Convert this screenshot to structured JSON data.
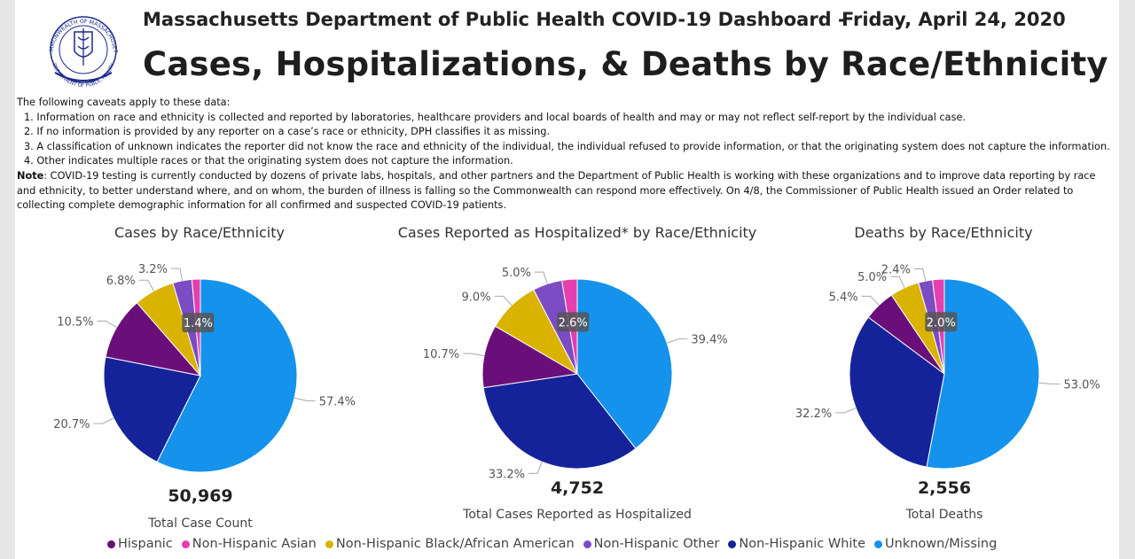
{
  "header": {
    "dept_title": "Massachusetts Department of Public Health COVID-19 Dashboard -",
    "date": "Friday, April 24, 2020",
    "main_title": "Cases, Hospitalizations, & Deaths by Race/Ethnicity"
  },
  "logo": {
    "text_top": "COMMONWEALTH OF MASSACHUSETTS",
    "text_bottom": "DEPARTMENT OF PUBLIC HEALTH"
  },
  "caveats": {
    "intro": "The following caveats apply to these data:",
    "items": [
      "1. Information on race and ethnicity is collected and reported by laboratories, healthcare providers and local boards of health and may or may not reflect self-report by the individual case.",
      "2. If no information is provided by any reporter on a case’s race or ethnicity, DPH classifies it as missing.",
      "3. A classification of unknown indicates the reporter did not know the race and ethnicity of the individual, the individual refused to provide information, or that the originating system does not capture the information.",
      "4. Other indicates multiple races or that the originating system does not capture the information."
    ],
    "note_label": "Note",
    "note_text": ": COVID-19 testing is currently conducted by dozens of private labs, hospitals, and other partners and the Department of Public Health is working with these organizations and to improve data reporting by race and ethnicity, to better understand where, and on whom, the burden of illness is falling so the Commonwealth can respond more effectively. On 4/8, the Commissioner of Public Health issued an Order related to collecting complete demographic information for all confirmed and suspected COVID-19 patients."
  },
  "colors": {
    "Hispanic": "#6a0f7a",
    "Non-Hispanic Asian": "#e33fae",
    "Non-Hispanic Black/African American": "#d9b300",
    "Non-Hispanic Other": "#7b4cc4",
    "Non-Hispanic White": "#15239b",
    "Unknown/Missing": "#1492ec"
  },
  "legend": [
    "Hispanic",
    "Non-Hispanic Asian",
    "Non-Hispanic Black/African American",
    "Non-Hispanic Other",
    "Non-Hispanic White",
    "Unknown/Missing"
  ],
  "chart_data": [
    {
      "type": "pie",
      "title": "Cases by Race/Ethnicity",
      "categories": [
        "Unknown/Missing",
        "Non-Hispanic White",
        "Hispanic",
        "Non-Hispanic Black/African American",
        "Non-Hispanic Other",
        "Non-Hispanic Asian"
      ],
      "values": [
        57.4,
        20.7,
        10.5,
        6.8,
        3.2,
        1.4
      ],
      "labels": [
        "57.4%",
        "20.7%",
        "10.5%",
        "6.8%",
        "3.2%",
        "1.4%"
      ],
      "total": "50,969",
      "total_label": "Total Case Count"
    },
    {
      "type": "pie",
      "title": "Cases Reported as Hospitalized* by Race/Ethnicity",
      "categories": [
        "Unknown/Missing",
        "Non-Hispanic White",
        "Hispanic",
        "Non-Hispanic Black/African American",
        "Non-Hispanic Other",
        "Non-Hispanic Asian"
      ],
      "values": [
        39.4,
        33.2,
        10.7,
        9.0,
        5.0,
        2.6
      ],
      "labels": [
        "39.4%",
        "33.2%",
        "10.7%",
        "9.0%",
        "5.0%",
        "2.6%"
      ],
      "total": "4,752",
      "total_label": "Total Cases Reported as Hospitalized"
    },
    {
      "type": "pie",
      "title": "Deaths by Race/Ethnicity",
      "categories": [
        "Unknown/Missing",
        "Non-Hispanic White",
        "Hispanic",
        "Non-Hispanic Black/African American",
        "Non-Hispanic Other",
        "Non-Hispanic Asian"
      ],
      "values": [
        53.0,
        32.2,
        5.4,
        5.0,
        2.4,
        2.0
      ],
      "labels": [
        "53.0%",
        "32.2%",
        "5.4%",
        "5.0%",
        "2.4%",
        "2.0%"
      ],
      "total": "2,556",
      "total_label": "Total Deaths"
    }
  ]
}
